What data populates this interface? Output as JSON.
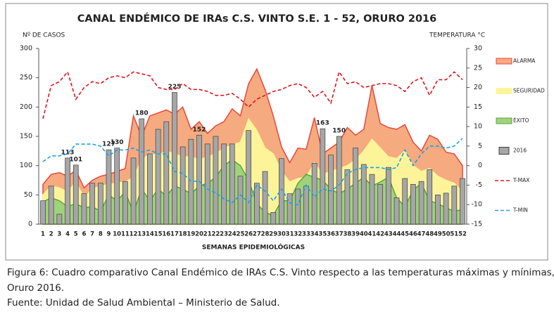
{
  "chart_data": {
    "type": "combo",
    "title": "CANAL ENDÉMICO DE IRAs C.S. VINTO S.E. 1 - 52,  ORURO 2016",
    "y_label": "Nº DE CASOS",
    "y2_label": "TEMPERATURA °C",
    "x_label": "SEMANAS EPIDEMIOLÓGICAS",
    "categories": [
      "1",
      "2",
      "3",
      "4",
      "5",
      "6",
      "7",
      "8",
      "9",
      "10",
      "11",
      "12",
      "13",
      "14",
      "15",
      "16",
      "17",
      "18",
      "19",
      "20",
      "21",
      "22",
      "23",
      "24",
      "25",
      "26",
      "27",
      "28",
      "29",
      "30",
      "31",
      "32",
      "33",
      "34",
      "35",
      "36",
      "37",
      "38",
      "39",
      "40",
      "41",
      "42",
      "43",
      "44",
      "45",
      "46",
      "47",
      "48",
      "49",
      "50",
      "51",
      "52"
    ],
    "ylim": [
      0,
      300
    ],
    "yticks": [
      0,
      50,
      100,
      150,
      200,
      250,
      300
    ],
    "y2lim": [
      -15,
      30
    ],
    "y2ticks": [
      -15,
      -10,
      -5,
      0,
      5,
      10,
      15,
      20,
      25,
      30
    ],
    "series": [
      {
        "name": "ALARMA",
        "type": "area",
        "color": "#f5aa80",
        "stroke": "#e8473b",
        "values": [
          68,
          85,
          88,
          82,
          92,
          62,
          75,
          82,
          85,
          90,
          95,
          185,
          150,
          185,
          190,
          195,
          188,
          200,
          162,
          175,
          155,
          168,
          175,
          197,
          185,
          240,
          265,
          230,
          185,
          132,
          105,
          130,
          128,
          182,
          120,
          130,
          140,
          165,
          152,
          162,
          237,
          172,
          165,
          162,
          170,
          140,
          125,
          152,
          145,
          123,
          120,
          100
        ]
      },
      {
        "name": "SEGURIDAD",
        "type": "area",
        "color": "#fdf49a",
        "stroke": "#fdf49a",
        "values": [
          50,
          65,
          62,
          55,
          72,
          45,
          60,
          65,
          68,
          70,
          72,
          80,
          110,
          120,
          118,
          125,
          120,
          115,
          115,
          110,
          115,
          120,
          130,
          135,
          140,
          180,
          160,
          130,
          120,
          90,
          72,
          78,
          80,
          105,
          85,
          90,
          95,
          100,
          110,
          125,
          145,
          130,
          115,
          112,
          125,
          100,
          90,
          95,
          82,
          75,
          70,
          55
        ]
      },
      {
        "name": "ÉXITO",
        "type": "area",
        "color": "#9fd27a",
        "stroke": "#5aa63c",
        "values": [
          38,
          45,
          40,
          30,
          35,
          28,
          30,
          22,
          50,
          40,
          55,
          20,
          60,
          40,
          60,
          48,
          65,
          60,
          52,
          65,
          70,
          80,
          100,
          110,
          100,
          75,
          35,
          20,
          15,
          40,
          40,
          70,
          85,
          80,
          75,
          60,
          52,
          60,
          70,
          80,
          65,
          72,
          80,
          45,
          30,
          58,
          70,
          40,
          35,
          28,
          22,
          25
        ]
      },
      {
        "name": "2016",
        "type": "bar",
        "color": "#a6a6a6",
        "stroke": "#404040",
        "values": [
          40,
          65,
          17,
          113,
          101,
          52,
          70,
          70,
          127,
          130,
          73,
          113,
          180,
          120,
          162,
          175,
          225,
          132,
          145,
          152,
          137,
          150,
          137,
          137,
          82,
          160,
          70,
          90,
          20,
          112,
          52,
          60,
          65,
          104,
          163,
          118,
          150,
          93,
          130,
          102,
          85,
          68,
          97,
          45,
          78,
          68,
          73,
          93,
          50,
          53,
          65,
          78
        ],
        "value_labels": [
          null,
          null,
          null,
          "113",
          "101",
          null,
          null,
          null,
          "127",
          "130",
          null,
          null,
          "180",
          null,
          null,
          null,
          "225",
          null,
          null,
          "152",
          null,
          null,
          null,
          null,
          null,
          null,
          null,
          null,
          null,
          null,
          null,
          null,
          null,
          null,
          "163",
          null,
          "150",
          null,
          null,
          null,
          null,
          null,
          null,
          null,
          null,
          null,
          null,
          null,
          null,
          null,
          null,
          null
        ]
      },
      {
        "name": "T-MAX",
        "type": "line",
        "axis": "y2",
        "color": "#e0141b",
        "values": [
          12,
          20.5,
          21.5,
          24,
          17,
          20,
          21.5,
          21,
          22.5,
          23,
          22.5,
          24,
          23.5,
          23,
          20,
          19.5,
          19.5,
          21,
          19.5,
          19.5,
          19,
          18,
          18,
          18.5,
          17,
          15,
          17,
          18,
          19,
          19.5,
          20.5,
          21,
          20,
          17.5,
          19,
          16,
          24,
          21,
          21.5,
          20,
          20.5,
          21,
          21,
          20.5,
          19,
          21.5,
          22.5,
          18,
          22,
          22,
          24,
          22
        ]
      },
      {
        "name": "T-MIN",
        "type": "line",
        "axis": "y2",
        "color": "#1ba1e2",
        "values": [
          1,
          2.5,
          2.5,
          3,
          5.5,
          5.5,
          5.5,
          5,
          2.5,
          4,
          4,
          4.5,
          3.5,
          4,
          3,
          3,
          -1.5,
          -2,
          -4,
          -4,
          -6,
          -7,
          -8.5,
          -9.5,
          -7.5,
          -9.5,
          -5,
          -6.5,
          -9,
          -6,
          -9.5,
          -10,
          -5,
          -8,
          -6,
          -6.5,
          -5,
          -2,
          -1,
          -0.5,
          -0.5,
          -0.5,
          -1,
          -0.5,
          4,
          0,
          3,
          5,
          5,
          4.5,
          5,
          7
        ]
      }
    ]
  },
  "caption": {
    "lines": [
      "Figura 6:  Cuadro comparativo Canal Endémico de IRAs C.S. Vinto respecto  a las temperaturas máximas y mínimas,",
      "Oruro 2016.",
      "Fuente: Unidad de Salud Ambiental – Ministerio de Salud."
    ]
  }
}
